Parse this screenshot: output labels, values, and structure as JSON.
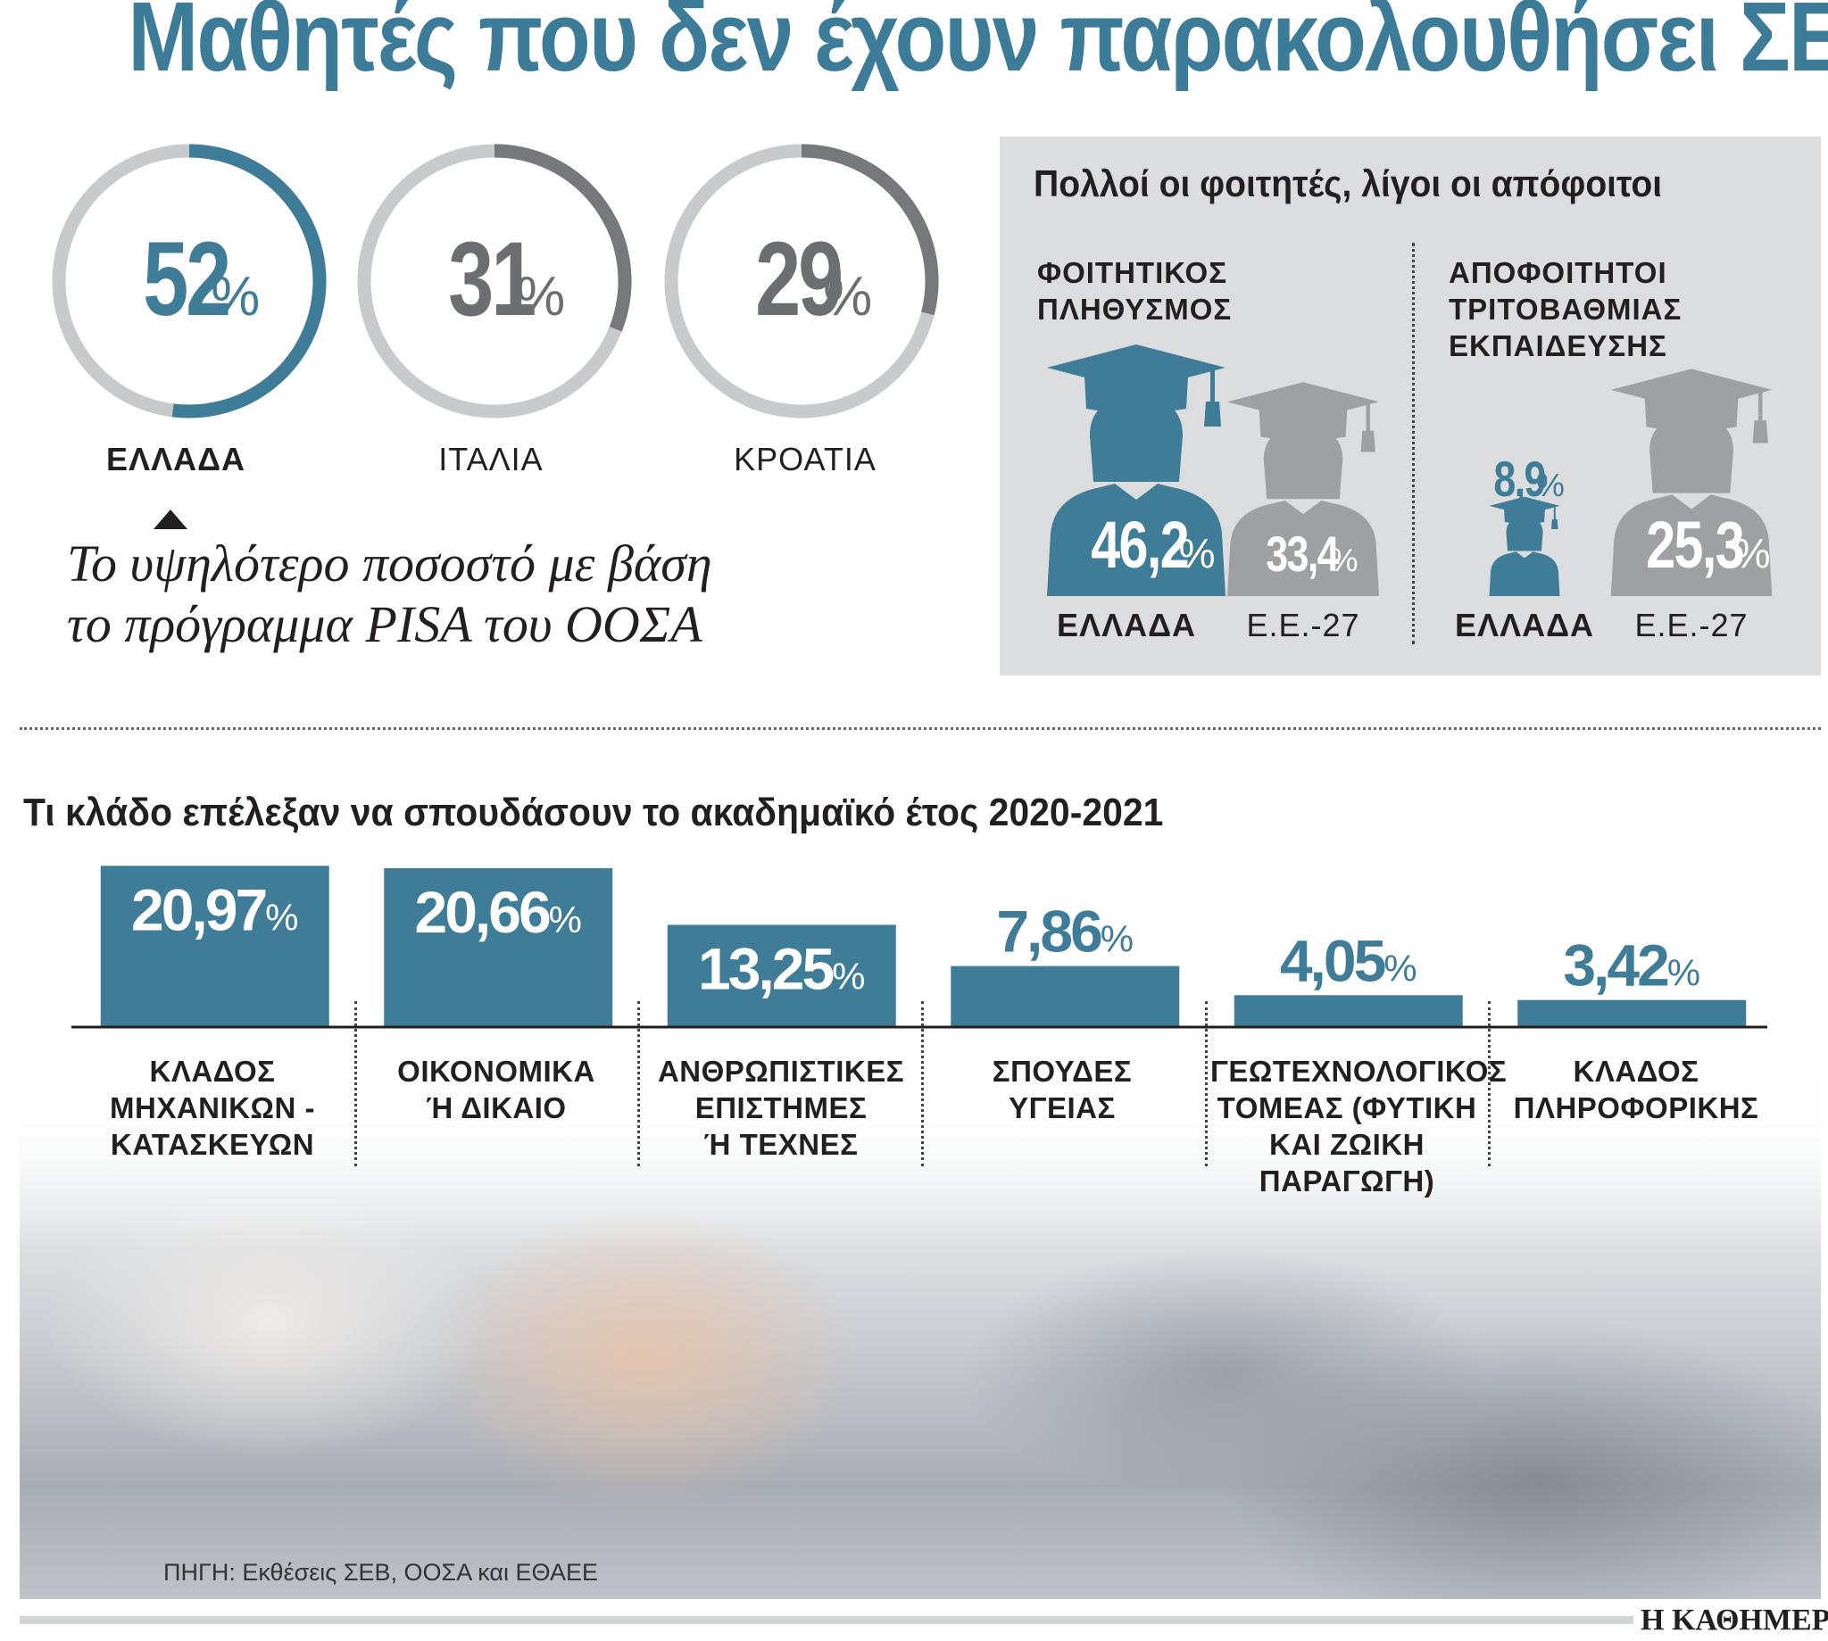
{
  "title": "Μαθητές που δεν έχουν παρακολουθήσει ΣΕΠ",
  "colors": {
    "accent": "#3f7c98",
    "dark_gray": "#77787b",
    "light_gray": "#c9cacc",
    "icon_gray": "#9fa0a3",
    "panel_bg": "#dcdddf"
  },
  "donuts": {
    "items": [
      {
        "value": "52",
        "unit": "%",
        "label": "ΕΛΛΑΔΑ",
        "fraction": 0.52,
        "highlight": true
      },
      {
        "value": "31",
        "unit": "%",
        "label": "ΙΤΑΛΙΑ",
        "fraction": 0.31,
        "highlight": false
      },
      {
        "value": "29",
        "unit": "%",
        "label": "ΚΡΟΑΤΙΑ",
        "fraction": 0.29,
        "highlight": false
      }
    ],
    "note_line1": "Το υψηλότερο ποσοστό με βάση",
    "note_line2": "το πρόγραμμα PISA του ΟΟΣΑ"
  },
  "panel": {
    "title": "Πολλοί οι φοιτητές, λίγοι οι απόφοιτοι",
    "left_heading_1": "ΦΟΙΤΗΤΙΚΟΣ",
    "left_heading_2": "ΠΛΗΘΥΣΜΟΣ",
    "right_heading_1": "ΑΠΟΦΟΙΤΗΤΟΙ",
    "right_heading_2": "ΤΡΙΤΟΒΑΘΜΙΑΣ",
    "right_heading_3": "ΕΚΠΑΙΔΕΥΣΗΣ",
    "students_greece": {
      "value": "46,2",
      "unit": "%",
      "label": "ΕΛΛΑΔΑ"
    },
    "students_eu": {
      "value": "33,4",
      "unit": "%",
      "label": "Ε.Ε.-27"
    },
    "grads_greece": {
      "value": "8,9",
      "unit": "%",
      "label": "ΕΛΛΑΔΑ"
    },
    "grads_eu": {
      "value": "25,3",
      "unit": "%",
      "label": "Ε.Ε.-27"
    }
  },
  "chart_data": {
    "type": "bar",
    "title": "Τι κλάδο επέλεξαν να σπουδάσουν το ακαδημαϊκό έτος 2020-2021",
    "categories": [
      [
        "ΚΛΑΔΟΣ",
        "ΜΗΧΑΝΙΚΩΝ -",
        "ΚΑΤΑΣΚΕΥΩΝ"
      ],
      [
        "ΟΙΚΟΝΟΜΙΚΑ",
        "Ή ΔΙΚΑΙΟ"
      ],
      [
        "ΑΝΘΡΩΠΙΣΤΙΚΕΣ",
        "ΕΠΙΣΤΗΜΕΣ",
        "Ή ΤΕΧΝΕΣ"
      ],
      [
        "ΣΠΟΥΔΕΣ",
        "ΥΓΕΙΑΣ"
      ],
      [
        "ΓΕΩΤΕΧΝΟΛΟΓΙΚΟΣ",
        "ΤΟΜΕΑΣ (ΦΥΤΙΚΗ",
        "ΚΑΙ ΖΩΙΚΗ",
        "ΠΑΡΑΓΩΓΗ)"
      ],
      [
        "ΚΛΑΔΟΣ",
        "ΠΛΗΡΟΦΟΡΙΚΗΣ"
      ]
    ],
    "values": [
      20.97,
      20.66,
      13.25,
      7.86,
      4.05,
      3.42
    ],
    "value_labels": [
      "20,97",
      "20,66",
      "13,25",
      "7,86",
      "4,05",
      "3,42"
    ],
    "unit": "%",
    "ylim": [
      0,
      21
    ],
    "color": "#3f7c98",
    "grid": false
  },
  "source": "ΠΗΓΗ: Εκθέσεις ΣΕΒ, ΟΟΣΑ και ΕΘΑΕΕ",
  "brand": "Η ΚΑΘΗΜΕΡΙΝΗ"
}
